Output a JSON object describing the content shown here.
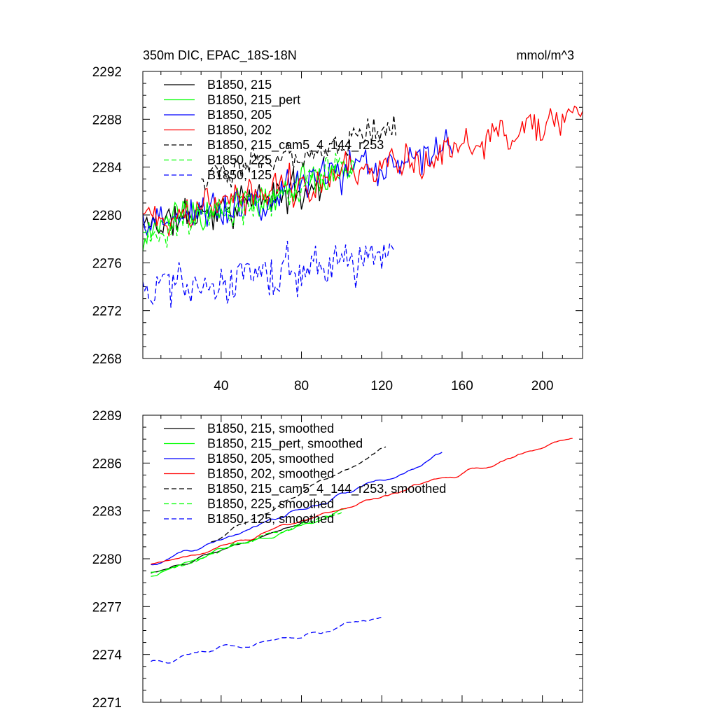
{
  "chart_data": [
    {
      "type": "line",
      "title": "350m DIC, EPAC_18S-18N",
      "units": "mmol/m^3",
      "xlim": [
        1,
        220
      ],
      "ylim": [
        2268,
        2292
      ],
      "x_ticks": [
        40,
        80,
        120,
        160,
        200
      ],
      "x_tick_labels": [
        "40",
        "80",
        "120",
        "160",
        "200"
      ],
      "y_ticks": [
        2268,
        2272,
        2276,
        2280,
        2284,
        2288,
        2292
      ],
      "y_tick_labels": [
        "2268",
        "2272",
        "2276",
        "2280",
        "2284",
        "2288",
        "2292"
      ],
      "legend_position": "top-left",
      "series": [
        {
          "name": "B1850, 215",
          "color": "#000000",
          "dash": "solid",
          "x_start": 1,
          "x_end": 90,
          "start": 2279.0,
          "end": 2282.5,
          "noise": 1.5,
          "seed": 11
        },
        {
          "name": "B1850, 215_pert",
          "color": "#00ff00",
          "dash": "solid",
          "x_start": 1,
          "x_end": 107,
          "start": 2278.5,
          "end": 2284.0,
          "noise": 1.5,
          "seed": 23
        },
        {
          "name": "B1850, 205",
          "color": "#0000ff",
          "dash": "solid",
          "x_start": 1,
          "x_end": 155,
          "start": 2279.0,
          "end": 2286.0,
          "noise": 1.6,
          "seed": 37
        },
        {
          "name": "B1850, 202",
          "color": "#ff0000",
          "dash": "solid",
          "x_start": 1,
          "x_end": 220,
          "start": 2279.5,
          "end": 2288.0,
          "noise": 1.5,
          "seed": 41
        },
        {
          "name": "B1850, 215_cam5_4_144_r253",
          "color": "#000000",
          "dash": "dashed",
          "x_start": 30,
          "x_end": 127,
          "start": 2283.0,
          "end": 2287.5,
          "noise": 1.2,
          "seed": 53
        },
        {
          "name": "B1850, 225",
          "color": "#00ff00",
          "dash": "dashed",
          "x_start": 1,
          "x_end": 106,
          "start": 2278.0,
          "end": 2284.0,
          "noise": 1.5,
          "seed": 67
        },
        {
          "name": "B1850, 125",
          "color": "#0000ff",
          "dash": "dashed",
          "x_start": 1,
          "x_end": 126,
          "start": 2274.0,
          "end": 2276.5,
          "noise": 1.8,
          "seed": 79
        }
      ]
    },
    {
      "type": "line",
      "title": "",
      "units": "",
      "xlim": [
        1,
        220
      ],
      "ylim": [
        2271,
        2289
      ],
      "x_ticks": [
        40,
        80,
        120,
        160,
        200
      ],
      "x_tick_labels": [],
      "y_ticks": [
        2271,
        2274,
        2277,
        2280,
        2283,
        2286,
        2289
      ],
      "y_tick_labels": [
        "2271",
        "2274",
        "2277",
        "2280",
        "2283",
        "2286",
        "2289"
      ],
      "legend_position": "top-left",
      "series": [
        {
          "name": "B1850, 215, smoothed",
          "color": "#000000",
          "dash": "solid",
          "x_start": 5,
          "x_end": 85,
          "start": 2279.0,
          "end": 2282.5,
          "noise": 0.5,
          "seed": 11
        },
        {
          "name": "B1850, 215_pert, smoothed",
          "color": "#00ff00",
          "dash": "solid",
          "x_start": 5,
          "x_end": 102,
          "start": 2279.0,
          "end": 2283.0,
          "noise": 0.5,
          "seed": 23
        },
        {
          "name": "B1850, 205, smoothed",
          "color": "#0000ff",
          "dash": "solid",
          "x_start": 5,
          "x_end": 150,
          "start": 2279.5,
          "end": 2286.5,
          "noise": 0.6,
          "seed": 37
        },
        {
          "name": "B1850, 202, smoothed",
          "color": "#ff0000",
          "dash": "solid",
          "x_start": 5,
          "x_end": 215,
          "start": 2279.5,
          "end": 2287.5,
          "noise": 0.5,
          "seed": 41
        },
        {
          "name": "B1850, 215_cam5_4_144_r253, smoothed",
          "color": "#000000",
          "dash": "dashed",
          "x_start": 35,
          "x_end": 122,
          "start": 2281.0,
          "end": 2287.0,
          "noise": 0.4,
          "seed": 53
        },
        {
          "name": "B1850, 225, smoothed",
          "color": "#00ff00",
          "dash": "dashed",
          "x_start": 5,
          "x_end": 100,
          "start": 2279.0,
          "end": 2283.0,
          "noise": 0.5,
          "seed": 67
        },
        {
          "name": "B1850, 125, smoothed",
          "color": "#0000ff",
          "dash": "dashed",
          "x_start": 5,
          "x_end": 121,
          "start": 2273.5,
          "end": 2276.3,
          "noise": 0.6,
          "seed": 79
        }
      ]
    }
  ]
}
